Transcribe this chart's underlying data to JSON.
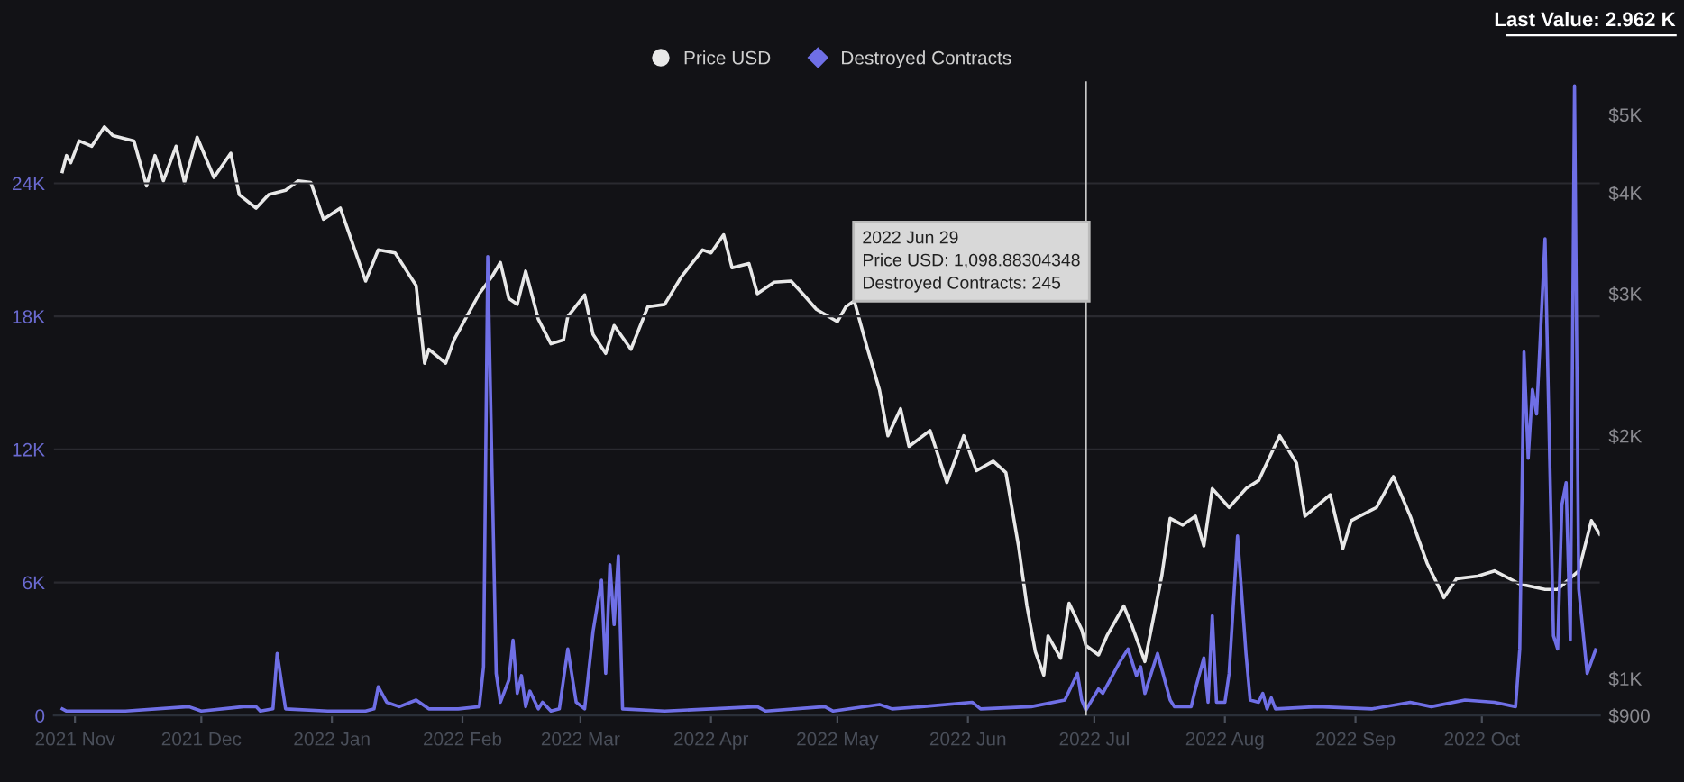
{
  "chart_data": {
    "type": "line",
    "series": [
      {
        "name": "Price USD",
        "color": "#e8e8e8",
        "axis": "y2",
        "x": [
          "2021-10-29",
          "2021-10-30",
          "2021-10-31",
          "2021-11-02",
          "2021-11-05",
          "2021-11-08",
          "2021-11-10",
          "2021-11-15",
          "2021-11-18",
          "2021-11-20",
          "2021-11-22",
          "2021-11-25",
          "2021-11-27",
          "2021-11-30",
          "2021-12-04",
          "2021-12-08",
          "2021-12-10",
          "2021-12-14",
          "2021-12-17",
          "2021-12-21",
          "2021-12-24",
          "2021-12-27",
          "2021-12-30",
          "2022-01-03",
          "2022-01-09",
          "2022-01-12",
          "2022-01-16",
          "2022-01-21",
          "2022-01-23",
          "2022-01-24",
          "2022-01-28",
          "2022-01-30",
          "2022-02-02",
          "2022-02-05",
          "2022-02-08",
          "2022-02-10",
          "2022-02-12",
          "2022-02-14",
          "2022-02-16",
          "2022-02-19",
          "2022-02-22",
          "2022-02-25",
          "2022-02-26",
          "2022-03-02",
          "2022-03-04",
          "2022-03-07",
          "2022-03-09",
          "2022-03-13",
          "2022-03-17",
          "2022-03-21",
          "2022-03-25",
          "2022-03-30",
          "2022-04-01",
          "2022-04-04",
          "2022-04-06",
          "2022-04-10",
          "2022-04-12",
          "2022-04-16",
          "2022-04-20",
          "2022-04-23",
          "2022-04-26",
          "2022-05-01",
          "2022-05-03",
          "2022-05-05",
          "2022-05-08",
          "2022-05-11",
          "2022-05-13",
          "2022-05-16",
          "2022-05-18",
          "2022-05-23",
          "2022-05-27",
          "2022-05-31",
          "2022-06-03",
          "2022-06-07",
          "2022-06-10",
          "2022-06-13",
          "2022-06-15",
          "2022-06-17",
          "2022-06-19",
          "2022-06-20",
          "2022-06-23",
          "2022-06-25",
          "2022-06-28",
          "2022-06-29",
          "2022-07-02",
          "2022-07-04",
          "2022-07-08",
          "2022-07-10",
          "2022-07-13",
          "2022-07-17",
          "2022-07-19",
          "2022-07-22",
          "2022-07-25",
          "2022-07-27",
          "2022-07-29",
          "2022-08-02",
          "2022-08-06",
          "2022-08-09",
          "2022-08-14",
          "2022-08-18",
          "2022-08-20",
          "2022-08-26",
          "2022-08-29",
          "2022-08-31",
          "2022-09-02",
          "2022-09-06",
          "2022-09-10",
          "2022-09-14",
          "2022-09-18",
          "2022-09-22",
          "2022-09-25",
          "2022-09-30",
          "2022-10-04",
          "2022-10-10",
          "2022-10-16",
          "2022-10-19",
          "2022-10-24",
          "2022-10-27",
          "2022-10-29"
        ],
        "values": [
          4250,
          4450,
          4360,
          4640,
          4570,
          4830,
          4710,
          4640,
          4080,
          4450,
          4140,
          4570,
          4120,
          4690,
          4180,
          4480,
          3980,
          3830,
          3980,
          4030,
          4140,
          4120,
          3710,
          3830,
          3110,
          3400,
          3370,
          3070,
          2460,
          2560,
          2460,
          2630,
          2810,
          3000,
          3150,
          3280,
          2960,
          2910,
          3200,
          2790,
          2600,
          2630,
          2810,
          2990,
          2670,
          2530,
          2740,
          2560,
          2890,
          2910,
          3150,
          3400,
          3370,
          3550,
          3230,
          3270,
          3000,
          3100,
          3110,
          2990,
          2870,
          2770,
          2890,
          2940,
          2580,
          2280,
          2000,
          2160,
          1940,
          2030,
          1750,
          2000,
          1810,
          1860,
          1800,
          1460,
          1230,
          1080,
          1010,
          1130,
          1060,
          1240,
          1150,
          1099,
          1070,
          1130,
          1230,
          1160,
          1050,
          1340,
          1580,
          1550,
          1590,
          1460,
          1720,
          1630,
          1720,
          1760,
          2000,
          1850,
          1590,
          1690,
          1450,
          1570,
          1590,
          1630,
          1780,
          1590,
          1390,
          1260,
          1330,
          1340,
          1360,
          1310,
          1290,
          1290,
          1360,
          1570,
          1510
        ]
      },
      {
        "name": "Destroyed Contracts",
        "color": "#6f6fe6",
        "x": [
          "2021-10-29",
          "2021-10-30",
          "2021-11-13",
          "2021-11-28",
          "2021-12-01",
          "2021-12-11",
          "2021-12-14",
          "2021-12-15",
          "2021-12-18",
          "2021-12-19",
          "2021-12-21",
          "2021-12-31",
          "2022-01-09",
          "2022-01-11",
          "2022-01-12",
          "2022-01-14",
          "2022-01-17",
          "2022-01-21",
          "2022-01-24",
          "2022-01-31",
          "2022-02-05",
          "2022-02-06",
          "2022-02-07",
          "2022-02-08",
          "2022-02-09",
          "2022-02-10",
          "2022-02-12",
          "2022-02-13",
          "2022-02-14",
          "2022-02-15",
          "2022-02-16",
          "2022-02-17",
          "2022-02-19",
          "2022-02-20",
          "2022-02-22",
          "2022-02-24",
          "2022-02-26",
          "2022-02-28",
          "2022-03-02",
          "2022-03-04",
          "2022-03-06",
          "2022-03-07",
          "2022-03-08",
          "2022-03-09",
          "2022-03-10",
          "2022-03-11",
          "2022-03-21",
          "2022-04-01",
          "2022-04-12",
          "2022-04-14",
          "2022-04-28",
          "2022-04-30",
          "2022-05-11",
          "2022-05-14",
          "2022-05-21",
          "2022-06-02",
          "2022-06-04",
          "2022-06-16",
          "2022-06-24",
          "2022-06-27",
          "2022-06-28",
          "2022-06-29",
          "2022-07-02",
          "2022-07-03",
          "2022-07-07",
          "2022-07-09",
          "2022-07-11",
          "2022-07-12",
          "2022-07-13",
          "2022-07-16",
          "2022-07-19",
          "2022-07-20",
          "2022-07-24",
          "2022-07-25",
          "2022-07-27",
          "2022-07-28",
          "2022-07-29",
          "2022-07-30",
          "2022-08-01",
          "2022-08-02",
          "2022-08-04",
          "2022-08-06",
          "2022-08-07",
          "2022-08-09",
          "2022-08-10",
          "2022-08-11",
          "2022-08-12",
          "2022-08-13",
          "2022-08-23",
          "2022-09-05",
          "2022-09-14",
          "2022-09-19",
          "2022-09-27",
          "2022-10-04",
          "2022-10-09",
          "2022-10-10",
          "2022-10-11",
          "2022-10-12",
          "2022-10-13",
          "2022-10-14",
          "2022-10-16",
          "2022-10-18",
          "2022-10-19",
          "2022-10-20",
          "2022-10-21",
          "2022-10-22",
          "2022-10-23",
          "2022-10-24",
          "2022-10-26",
          "2022-10-28"
        ],
        "values": [
          300,
          200,
          200,
          400,
          200,
          400,
          400,
          200,
          300,
          2800,
          300,
          200,
          200,
          300,
          1300,
          600,
          400,
          700,
          300,
          300,
          400,
          2200,
          20700,
          11200,
          1900,
          600,
          1600,
          3400,
          1000,
          1800,
          400,
          1100,
          300,
          600,
          200,
          300,
          3000,
          600,
          300,
          3800,
          6100,
          1900,
          6800,
          4100,
          7200,
          300,
          200,
          300,
          400,
          200,
          400,
          200,
          500,
          300,
          400,
          600,
          300,
          400,
          700,
          1900,
          700,
          245,
          1200,
          1000,
          2400,
          3000,
          1800,
          2200,
          1000,
          2800,
          700,
          400,
          400,
          1200,
          2600,
          600,
          4500,
          600,
          600,
          1900,
          8100,
          2800,
          700,
          600,
          1000,
          300,
          800,
          300,
          400,
          300,
          600,
          400,
          700,
          600,
          400,
          3000,
          16400,
          11600,
          14700,
          13600,
          21500,
          3600,
          3000,
          9500,
          10500,
          3400,
          28400,
          5700,
          1900,
          2962
        ]
      }
    ],
    "xlim": [
      "2021-10-27",
      "2022-10-29"
    ],
    "xticks": [
      {
        "value": "2021-11-01",
        "label": "2021 Nov"
      },
      {
        "value": "2021-12-01",
        "label": "2021 Dec"
      },
      {
        "value": "2022-01-01",
        "label": "2022 Jan"
      },
      {
        "value": "2022-02-01",
        "label": "2022 Feb"
      },
      {
        "value": "2022-03-01",
        "label": "2022 Mar"
      },
      {
        "value": "2022-04-01",
        "label": "2022 Apr"
      },
      {
        "value": "2022-05-01",
        "label": "2022 May"
      },
      {
        "value": "2022-06-01",
        "label": "2022 Jun"
      },
      {
        "value": "2022-07-01",
        "label": "2022 Jul"
      },
      {
        "value": "2022-08-01",
        "label": "2022 Aug"
      },
      {
        "value": "2022-09-01",
        "label": "2022 Sep"
      },
      {
        "value": "2022-10-01",
        "label": "2022 Oct"
      }
    ],
    "ylim": [
      0,
      28600
    ],
    "yticks": [
      0,
      {
        "value": 6000,
        "label": "6K"
      },
      {
        "value": 12000,
        "label": "12K"
      },
      {
        "value": 18000,
        "label": "18K"
      },
      {
        "value": 24000,
        "label": "24K"
      }
    ],
    "y2lim": [
      900,
      5500
    ],
    "y2ticks": [
      {
        "value": 900,
        "label": "$900"
      },
      {
        "value": 1000,
        "label": "$1K"
      },
      {
        "value": 2000,
        "label": "$2K"
      },
      {
        "value": 3000,
        "label": "$3K"
      },
      {
        "value": 4000,
        "label": "$4K"
      },
      {
        "value": 5000,
        "label": "$5K"
      }
    ],
    "log": "y2",
    "grid": "y",
    "legend": "top",
    "ref_lines": [
      {
        "axis": "x",
        "value": "2022-06-29",
        "color": "#c8c8c8"
      }
    ],
    "annotations": [
      "Last Value: 2.962 K",
      "2022 Jun 29\nPrice USD: 1,098.88304348\nDestroyed Contracts: 245"
    ]
  }
}
